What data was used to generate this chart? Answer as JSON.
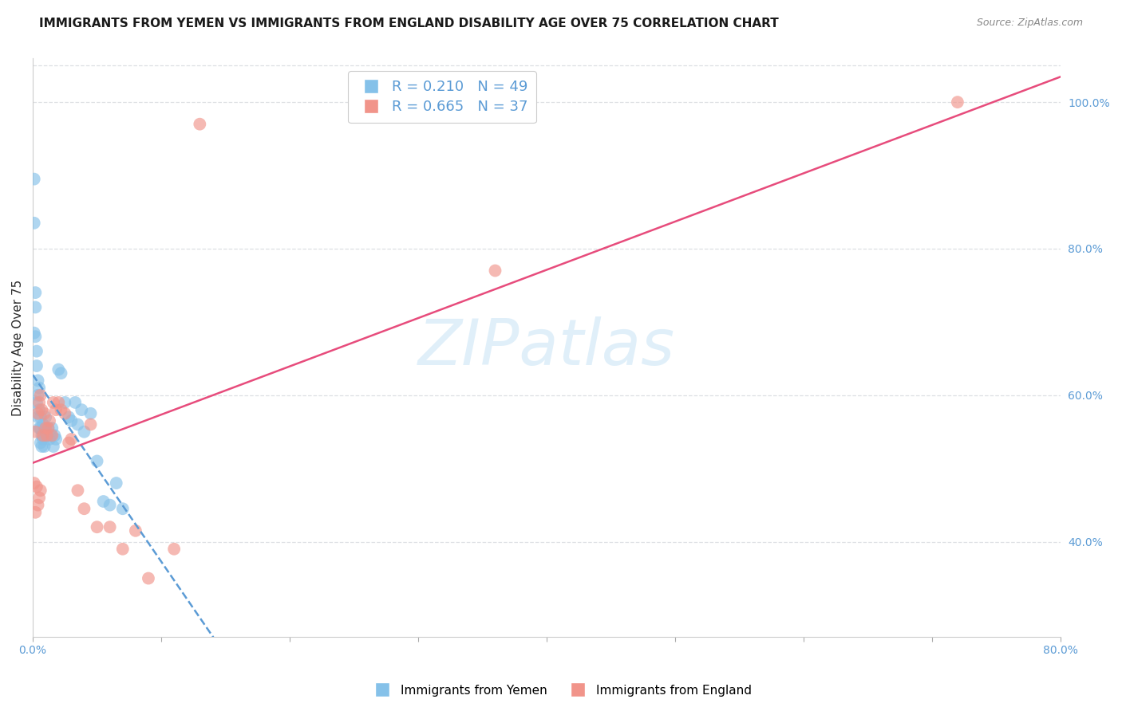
{
  "title": "IMMIGRANTS FROM YEMEN VS IMMIGRANTS FROM ENGLAND DISABILITY AGE OVER 75 CORRELATION CHART",
  "source": "Source: ZipAtlas.com",
  "ylabel": "Disability Age Over 75",
  "R_yemen": 0.21,
  "N_yemen": 49,
  "R_england": 0.665,
  "N_england": 37,
  "color_yemen": "#85C1E9",
  "color_england": "#F1948A",
  "line_color_yemen": "#5B9BD5",
  "line_color_england": "#E74C7C",
  "xmin": 0.0,
  "xmax": 0.8,
  "ymin": 0.27,
  "ymax": 1.06,
  "right_yticks": [
    0.4,
    0.6,
    0.8,
    1.0
  ],
  "right_yticklabels": [
    "40.0%",
    "60.0%",
    "80.0%",
    "100.0%"
  ],
  "xtick_vals": [
    0.0,
    0.1,
    0.2,
    0.3,
    0.4,
    0.5,
    0.6,
    0.7,
    0.8
  ],
  "xtick_labels": [
    "0.0%",
    "",
    "",
    "",
    "",
    "",
    "",
    "",
    "80.0%"
  ],
  "watermark_text": "ZIPatlas",
  "legend_label_yemen": "Immigrants from Yemen",
  "legend_label_england": "Immigrants from England",
  "yemen_x": [
    0.001,
    0.001,
    0.001,
    0.002,
    0.002,
    0.002,
    0.003,
    0.003,
    0.003,
    0.004,
    0.004,
    0.004,
    0.005,
    0.005,
    0.005,
    0.006,
    0.006,
    0.006,
    0.007,
    0.007,
    0.008,
    0.008,
    0.009,
    0.009,
    0.01,
    0.01,
    0.011,
    0.012,
    0.013,
    0.014,
    0.015,
    0.016,
    0.017,
    0.018,
    0.02,
    0.022,
    0.025,
    0.028,
    0.03,
    0.033,
    0.035,
    0.038,
    0.04,
    0.045,
    0.05,
    0.055,
    0.06,
    0.065,
    0.07
  ],
  "yemen_y": [
    0.895,
    0.835,
    0.685,
    0.74,
    0.72,
    0.68,
    0.66,
    0.64,
    0.59,
    0.62,
    0.6,
    0.57,
    0.61,
    0.58,
    0.555,
    0.57,
    0.555,
    0.535,
    0.545,
    0.53,
    0.56,
    0.54,
    0.555,
    0.53,
    0.57,
    0.55,
    0.545,
    0.555,
    0.54,
    0.545,
    0.555,
    0.53,
    0.545,
    0.54,
    0.635,
    0.63,
    0.59,
    0.57,
    0.565,
    0.59,
    0.56,
    0.58,
    0.55,
    0.575,
    0.51,
    0.455,
    0.45,
    0.48,
    0.445
  ],
  "england_x": [
    0.001,
    0.002,
    0.002,
    0.003,
    0.004,
    0.004,
    0.005,
    0.005,
    0.006,
    0.006,
    0.007,
    0.008,
    0.009,
    0.01,
    0.011,
    0.012,
    0.013,
    0.015,
    0.016,
    0.018,
    0.02,
    0.022,
    0.025,
    0.028,
    0.03,
    0.035,
    0.04,
    0.045,
    0.05,
    0.06,
    0.07,
    0.08,
    0.09,
    0.11,
    0.13,
    0.36,
    0.72
  ],
  "england_y": [
    0.48,
    0.55,
    0.44,
    0.475,
    0.575,
    0.45,
    0.59,
    0.46,
    0.6,
    0.47,
    0.58,
    0.545,
    0.575,
    0.555,
    0.545,
    0.555,
    0.565,
    0.545,
    0.59,
    0.58,
    0.59,
    0.58,
    0.575,
    0.535,
    0.54,
    0.47,
    0.445,
    0.56,
    0.42,
    0.42,
    0.39,
    0.415,
    0.35,
    0.39,
    0.97,
    0.77,
    1.0
  ],
  "grid_color": "#D5D8DC",
  "grid_alpha": 0.8,
  "top_border_color": "#D5D8DC",
  "bottom_border_color": "#D5D8DC"
}
